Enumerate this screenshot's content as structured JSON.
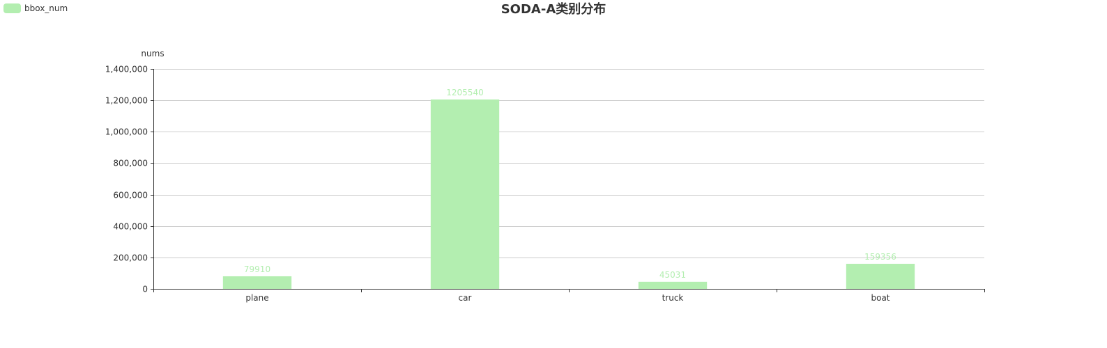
{
  "chart_data": {
    "type": "bar",
    "title": "SODA-A类别分布",
    "xlabel": "",
    "ylabel": "nums",
    "categories": [
      "plane",
      "car",
      "truck",
      "boat"
    ],
    "series": [
      {
        "name": "bbox_num",
        "values": [
          79910,
          1205540,
          45031,
          159356
        ]
      }
    ],
    "ylim": [
      0,
      1400000
    ],
    "yticks": [
      0,
      200000,
      400000,
      600000,
      800000,
      1000000,
      1200000,
      1400000
    ],
    "ytick_labels": [
      "0",
      "200,000",
      "400,000",
      "600,000",
      "800,000",
      "1,000,000",
      "1,200,000",
      "1,400,000"
    ],
    "data_labels": [
      "79910",
      "1205540",
      "45031",
      "159356"
    ],
    "grid": true,
    "legend_position": "top-left",
    "colors": {
      "bar": "#b3eeb0",
      "label": "#b3eeb0",
      "axis": "#333333",
      "grid": "#cccccc"
    }
  }
}
